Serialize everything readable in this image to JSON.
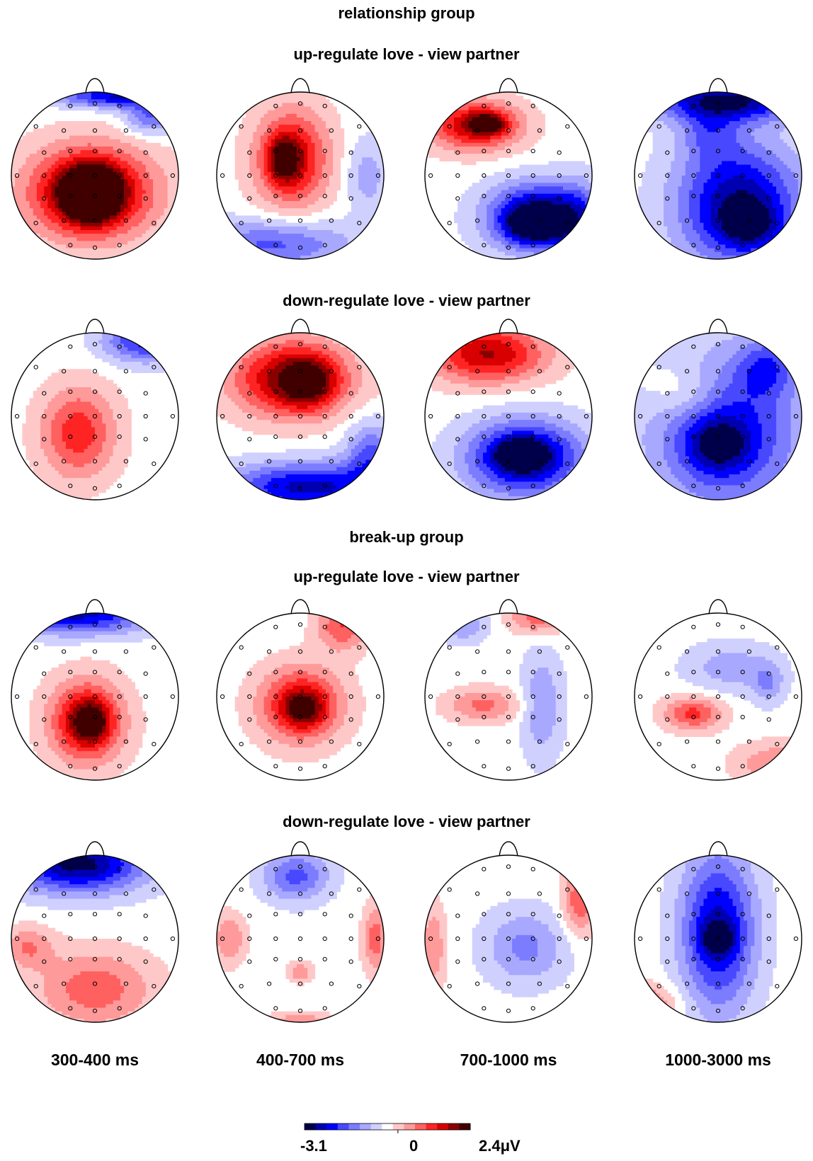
{
  "groups": [
    {
      "title": "relationship group",
      "rows": [
        {
          "title": "up-regulate love - view partner"
        },
        {
          "title": "down-regulate love - view partner"
        }
      ]
    },
    {
      "title": "break-up group",
      "rows": [
        {
          "title": "up-regulate love - view partner"
        },
        {
          "title": "down-regulate love - view partner"
        }
      ]
    }
  ],
  "time_windows": [
    "300-400 ms",
    "400-700 ms",
    "700-1000 ms",
    "1000-3000 ms"
  ],
  "colorbar": {
    "min_label": "-3.1",
    "zero_label": "0",
    "max_label": "2.4μV",
    "min": -3.1,
    "max": 2.4,
    "colors": [
      "#00004a",
      "#0000b0",
      "#0000ff",
      "#4848ff",
      "#7c7cff",
      "#a8a8ff",
      "#d0d0ff",
      "#ffffff",
      "#ffc8c8",
      "#ff9a9a",
      "#ff6060",
      "#ff2424",
      "#d80000",
      "#8a0000",
      "#400000"
    ]
  },
  "maps": [
    [
      {
        "blobs": [
          [
            -0.05,
            0.2,
            0.75,
            0.55,
            1.0
          ],
          [
            -0.05,
            0.22,
            0.3,
            0.28,
            1.3
          ],
          [
            0.25,
            -0.95,
            0.7,
            0.14,
            -0.8
          ],
          [
            0.65,
            -0.7,
            0.3,
            0.2,
            -0.5
          ]
        ]
      },
      {
        "blobs": [
          [
            -0.1,
            -0.2,
            0.45,
            0.6,
            0.75
          ],
          [
            -0.2,
            -0.2,
            0.18,
            0.26,
            0.55
          ],
          [
            -0.3,
            0.82,
            0.9,
            0.3,
            -0.55
          ],
          [
            0.8,
            0.0,
            0.25,
            0.45,
            -0.3
          ]
        ]
      },
      {
        "blobs": [
          [
            -0.4,
            -0.6,
            0.55,
            0.3,
            0.8
          ],
          [
            -0.25,
            -0.62,
            0.2,
            0.12,
            0.6
          ],
          [
            0.35,
            0.5,
            0.6,
            0.4,
            -1.05
          ],
          [
            0.3,
            0.6,
            0.3,
            0.2,
            -0.5
          ],
          [
            0.85,
            0.6,
            0.3,
            0.5,
            -0.4
          ]
        ]
      },
      {
        "blobs": [
          [
            0.25,
            0.35,
            0.75,
            0.75,
            -0.95
          ],
          [
            0.1,
            -0.9,
            0.9,
            0.25,
            -0.95
          ],
          [
            -0.1,
            -0.5,
            0.35,
            0.3,
            -0.35
          ],
          [
            0.4,
            0.6,
            0.35,
            0.25,
            -0.4
          ]
        ]
      }
    ],
    [
      {
        "blobs": [
          [
            -0.2,
            0.2,
            0.45,
            0.55,
            0.6
          ],
          [
            0.6,
            -0.9,
            0.5,
            0.25,
            -0.7
          ]
        ]
      },
      {
        "blobs": [
          [
            -0.1,
            -0.45,
            0.7,
            0.45,
            0.9
          ],
          [
            0.1,
            -0.4,
            0.3,
            0.3,
            0.45
          ],
          [
            0.1,
            0.85,
            1.0,
            0.3,
            -0.85
          ],
          [
            0.85,
            0.45,
            0.3,
            0.4,
            -0.5
          ]
        ]
      },
      {
        "blobs": [
          [
            -0.25,
            -0.75,
            0.7,
            0.35,
            0.8
          ],
          [
            0.2,
            0.5,
            0.7,
            0.45,
            -1.0
          ],
          [
            0.15,
            0.45,
            0.25,
            0.15,
            -0.8
          ]
        ]
      },
      {
        "blobs": [
          [
            0.1,
            0.2,
            0.9,
            0.95,
            -0.75
          ],
          [
            0.0,
            0.35,
            0.35,
            0.3,
            -0.45
          ],
          [
            0.6,
            -0.6,
            0.35,
            0.35,
            -0.45
          ],
          [
            -0.4,
            -0.3,
            0.45,
            0.35,
            0.3
          ]
        ]
      }
    ],
    [
      {
        "blobs": [
          [
            -0.1,
            0.3,
            0.45,
            0.5,
            0.8
          ],
          [
            -0.05,
            0.3,
            0.2,
            0.22,
            0.55
          ],
          [
            -0.2,
            -1.0,
            0.9,
            0.25,
            -0.85
          ]
        ]
      },
      {
        "blobs": [
          [
            0.0,
            0.1,
            0.5,
            0.45,
            0.75
          ],
          [
            0.05,
            0.15,
            0.22,
            0.2,
            0.45
          ],
          [
            0.5,
            -0.85,
            0.3,
            0.3,
            0.5
          ]
        ]
      },
      {
        "blobs": [
          [
            -0.3,
            0.1,
            0.45,
            0.2,
            0.4
          ],
          [
            0.4,
            0.1,
            0.25,
            0.65,
            -0.35
          ],
          [
            0.35,
            -0.95,
            0.35,
            0.2,
            0.45
          ],
          [
            -0.55,
            -0.85,
            0.3,
            0.2,
            -0.35
          ]
        ]
      },
      {
        "blobs": [
          [
            -0.3,
            0.2,
            0.35,
            0.2,
            0.55
          ],
          [
            0.15,
            -0.35,
            0.55,
            0.3,
            -0.3
          ],
          [
            0.6,
            -0.15,
            0.2,
            0.25,
            -0.3
          ],
          [
            0.7,
            0.8,
            0.5,
            0.25,
            0.35
          ]
        ]
      }
    ],
    [
      {
        "blobs": [
          [
            -0.2,
            -0.9,
            0.8,
            0.35,
            -1.0
          ],
          [
            0.0,
            0.6,
            0.7,
            0.45,
            0.45
          ],
          [
            -0.8,
            0.1,
            0.3,
            0.25,
            0.35
          ]
        ]
      },
      {
        "blobs": [
          [
            -0.05,
            -0.75,
            0.4,
            0.3,
            -0.55
          ],
          [
            0.0,
            0.4,
            0.15,
            0.12,
            0.35
          ],
          [
            -0.85,
            0.0,
            0.2,
            0.3,
            0.35
          ],
          [
            0.9,
            0.0,
            0.15,
            0.4,
            0.45
          ],
          [
            0.0,
            1.0,
            0.4,
            0.12,
            0.35
          ]
        ]
      },
      {
        "blobs": [
          [
            0.2,
            0.1,
            0.5,
            0.45,
            -0.4
          ],
          [
            0.85,
            -0.45,
            0.2,
            0.4,
            0.5
          ],
          [
            -0.9,
            0.1,
            0.15,
            0.5,
            0.35
          ]
        ]
      },
      {
        "blobs": [
          [
            0.0,
            -0.1,
            0.45,
            0.95,
            -0.85
          ],
          [
            0.0,
            0.0,
            0.2,
            0.2,
            -0.4
          ],
          [
            -0.9,
            0.8,
            0.4,
            0.25,
            0.45
          ]
        ]
      }
    ]
  ]
}
